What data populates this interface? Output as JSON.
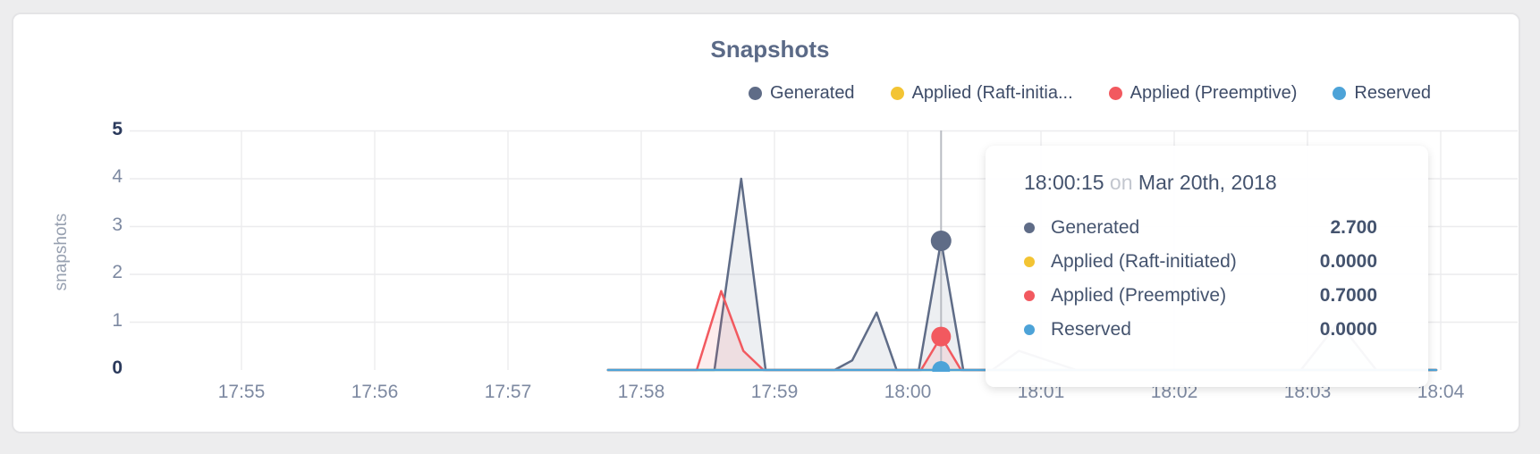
{
  "colors": {
    "page_bg": "#ededee",
    "card_bg": "#ffffff",
    "card_border": "#e4e4e6",
    "title_text": "#5b6a87",
    "tick_text": "#7d89a1",
    "tick_text_emph": "#2b3a5c",
    "legend_text": "#3e4c68",
    "axis_title_text": "#97a0b0",
    "gridline": "#ececee",
    "hover_line": "#b9bcc3",
    "tooltip_text": "#44536e",
    "tooltip_muted": "#c3c7cf",
    "series_generated": "#5f6c87",
    "series_raft": "#f3c433",
    "series_preemptive": "#f2595f",
    "series_reserved": "#4da3d8"
  },
  "legend": {
    "items": [
      {
        "label": "Generated",
        "color": "#5f6c87"
      },
      {
        "label": "Applied (Raft-initia...",
        "color": "#f3c433"
      },
      {
        "label": "Applied (Preemptive)",
        "color": "#f2595f"
      },
      {
        "label": "Reserved",
        "color": "#4da3d8"
      }
    ]
  },
  "chart_data": {
    "type": "area",
    "title": "Snapshots",
    "ylabel": "snapshots",
    "ylim": [
      0,
      5
    ],
    "y_ticks": [
      0,
      1,
      2,
      3,
      4,
      5
    ],
    "x_ticks": [
      "17:55",
      "17:56",
      "17:57",
      "17:58",
      "17:59",
      "18:00",
      "18:01",
      "18:02",
      "18:03",
      "18:04"
    ],
    "grid": true,
    "legend_position": "top-right",
    "series": [
      {
        "name": "Generated",
        "color": "#5f6c87",
        "fill": true,
        "points": [
          [
            "17:57:45",
            0
          ],
          [
            "17:58:33",
            0
          ],
          [
            "17:58:45",
            4.0
          ],
          [
            "17:58:56",
            0
          ],
          [
            "17:59:27",
            0
          ],
          [
            "17:59:35",
            0.2
          ],
          [
            "17:59:46",
            1.2
          ],
          [
            "17:59:55",
            0
          ],
          [
            "18:00:05",
            0
          ],
          [
            "18:00:15",
            2.7
          ],
          [
            "18:00:25",
            0
          ],
          [
            "18:00:38",
            0
          ],
          [
            "18:00:50",
            0.4
          ],
          [
            "18:01:16",
            0
          ],
          [
            "18:02:57",
            0
          ],
          [
            "18:03:14",
            1.0
          ],
          [
            "18:03:31",
            0
          ],
          [
            "18:03:58",
            0
          ]
        ]
      },
      {
        "name": "Applied (Raft-initiated)",
        "color": "#f3c433",
        "fill": false,
        "points": [
          [
            "17:57:45",
            0
          ],
          [
            "18:03:58",
            0
          ]
        ]
      },
      {
        "name": "Applied (Preemptive)",
        "color": "#f2595f",
        "fill": true,
        "points": [
          [
            "17:57:45",
            0
          ],
          [
            "17:58:25",
            0
          ],
          [
            "17:58:36",
            1.65
          ],
          [
            "17:58:46",
            0.4
          ],
          [
            "17:58:55",
            0
          ],
          [
            "18:00:06",
            0
          ],
          [
            "18:00:15",
            0.7
          ],
          [
            "18:00:24",
            0
          ],
          [
            "18:03:58",
            0
          ]
        ]
      },
      {
        "name": "Reserved",
        "color": "#4da3d8",
        "fill": false,
        "points": [
          [
            "17:57:45",
            0
          ],
          [
            "18:03:58",
            0
          ]
        ]
      }
    ],
    "hover": {
      "time": "18:00:15",
      "markers": [
        {
          "series": "Generated",
          "value": 2.7
        },
        {
          "series": "Applied (Raft-initiated)",
          "value": 0
        },
        {
          "series": "Applied (Preemptive)",
          "value": 0.7
        },
        {
          "series": "Reserved",
          "value": 0
        }
      ]
    }
  },
  "tooltip": {
    "time": "18:00:15",
    "connector": "on",
    "date": "Mar 20th, 2018",
    "rows": [
      {
        "label": "Generated",
        "value": "2.700",
        "color": "#5f6c87"
      },
      {
        "label": "Applied (Raft-initiated)",
        "value": "0.0000",
        "color": "#f3c433"
      },
      {
        "label": "Applied (Preemptive)",
        "value": "0.7000",
        "color": "#f2595f"
      },
      {
        "label": "Reserved",
        "value": "0.0000",
        "color": "#4da3d8"
      }
    ]
  }
}
